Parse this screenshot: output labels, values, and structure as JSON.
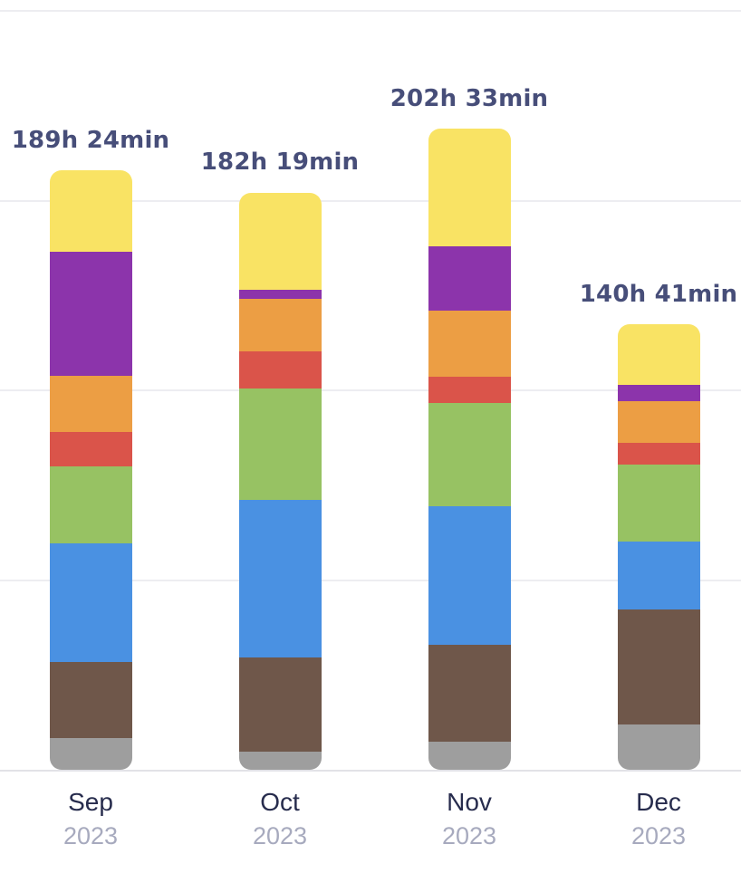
{
  "chart_data": {
    "type": "bar",
    "stacked": true,
    "title": "",
    "xlabel": "",
    "ylabel": "",
    "unit": "hours",
    "legend": false,
    "grid": true,
    "gridline_hours": [
      0,
      60,
      120,
      180,
      240
    ],
    "ylim_hours": [
      0,
      244
    ],
    "categories": [
      {
        "month": "Sep",
        "year": "2023"
      },
      {
        "month": "Oct",
        "year": "2023"
      },
      {
        "month": "Nov",
        "year": "2023"
      },
      {
        "month": "Dec",
        "year": "2023"
      }
    ],
    "bar_total_labels": [
      "189h 24min",
      "182h 19min",
      "202h 33min",
      "140h 41min"
    ],
    "bar_totals_hours": [
      189.4,
      182.32,
      202.55,
      140.68
    ],
    "series": [
      {
        "name": "gray",
        "color": "#9e9e9e",
        "values": [
          9.9,
          5.8,
          8.9,
          14.3
        ]
      },
      {
        "name": "brown",
        "color": "#6f574a",
        "values": [
          24.2,
          29.6,
          30.5,
          36.3
        ]
      },
      {
        "name": "blue",
        "color": "#4a91e2",
        "values": [
          37.4,
          49.9,
          43.7,
          21.4
        ]
      },
      {
        "name": "green",
        "color": "#97c263",
        "values": [
          24.3,
          35.0,
          32.6,
          24.5
        ]
      },
      {
        "name": "red",
        "color": "#da544a",
        "values": [
          10.9,
          11.9,
          8.3,
          6.7
        ]
      },
      {
        "name": "orange",
        "color": "#ec9e44",
        "values": [
          17.8,
          16.5,
          21.1,
          13.2
        ]
      },
      {
        "name": "purple",
        "color": "#8c34ab",
        "values": [
          39.1,
          2.9,
          20.3,
          5.0
        ]
      },
      {
        "name": "yellow",
        "color": "#f9e364",
        "values": [
          25.8,
          30.7,
          37.2,
          19.3
        ]
      }
    ],
    "theme": {
      "total_label_color": "#474e79",
      "month_label_color": "#272c4d",
      "year_label_color": "#a7aabe",
      "gridline_color": "#ededf1",
      "baseline_color": "#e2e2e7",
      "background_color": "#ffffff"
    }
  }
}
